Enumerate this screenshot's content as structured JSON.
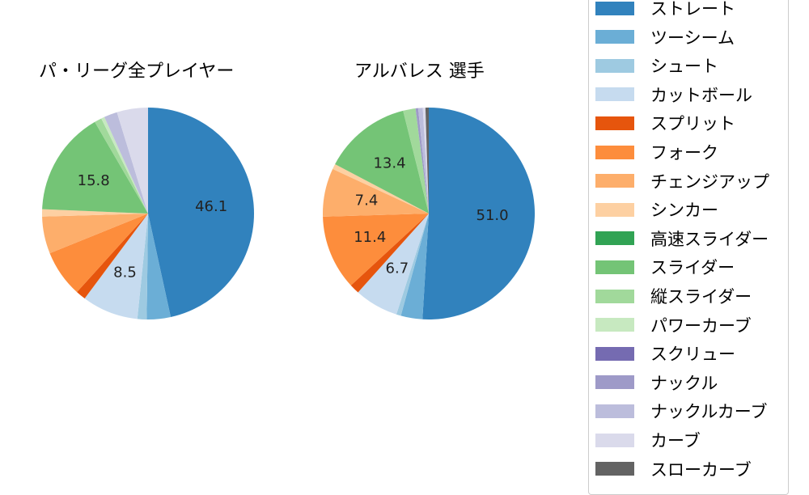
{
  "chart_data": [
    {
      "type": "pie",
      "title": "パ・リーグ全プレイヤー",
      "slices": [
        {
          "label": "ストレート",
          "value": 46.1,
          "color": "#3182bd"
        },
        {
          "label": "ツーシーム",
          "value": 3.6,
          "color": "#6baed6"
        },
        {
          "label": "シュート",
          "value": 1.4,
          "color": "#9ecae1"
        },
        {
          "label": "カットボール",
          "value": 8.5,
          "color": "#c6dbef"
        },
        {
          "label": "スプリット",
          "value": 1.5,
          "color": "#e6550d"
        },
        {
          "label": "フォーク",
          "value": 7.1,
          "color": "#fd8d3c"
        },
        {
          "label": "チェンジアップ",
          "value": 5.6,
          "color": "#fdae6b"
        },
        {
          "label": "シンカー",
          "value": 1.1,
          "color": "#fdd0a2"
        },
        {
          "label": "高速スライダー",
          "value": 0.0,
          "color": "#31a354"
        },
        {
          "label": "スライダー",
          "value": 15.8,
          "color": "#74c476"
        },
        {
          "label": "縦スライダー",
          "value": 1.1,
          "color": "#a1d99b"
        },
        {
          "label": "パワーカーブ",
          "value": 0.5,
          "color": "#c7e9c0"
        },
        {
          "label": "スクリュー",
          "value": 0.0,
          "color": "#756bb1"
        },
        {
          "label": "ナックル",
          "value": 0.0,
          "color": "#9e9ac8"
        },
        {
          "label": "ナックルカーブ",
          "value": 2.0,
          "color": "#bcbddc"
        },
        {
          "label": "カーブ",
          "value": 4.7,
          "color": "#dadaeb"
        },
        {
          "label": "スローカーブ",
          "value": 0.0,
          "color": "#636363"
        }
      ],
      "data_labels": {
        "ストレート": "46.1",
        "カットボール": "8.5",
        "スライダー": "15.8"
      }
    },
    {
      "type": "pie",
      "title": "アルバレス  選手",
      "slices": [
        {
          "label": "ストレート",
          "value": 51.0,
          "color": "#3182bd"
        },
        {
          "label": "ツーシーム",
          "value": 3.3,
          "color": "#6baed6"
        },
        {
          "label": "シュート",
          "value": 0.7,
          "color": "#9ecae1"
        },
        {
          "label": "カットボール",
          "value": 6.7,
          "color": "#c6dbef"
        },
        {
          "label": "スプリット",
          "value": 1.5,
          "color": "#e6550d"
        },
        {
          "label": "フォーク",
          "value": 11.4,
          "color": "#fd8d3c"
        },
        {
          "label": "チェンジアップ",
          "value": 7.4,
          "color": "#fdae6b"
        },
        {
          "label": "シンカー",
          "value": 0.8,
          "color": "#fdd0a2"
        },
        {
          "label": "高速スライダー",
          "value": 0.0,
          "color": "#31a354"
        },
        {
          "label": "スライダー",
          "value": 13.4,
          "color": "#74c476"
        },
        {
          "label": "縦スライダー",
          "value": 1.9,
          "color": "#a1d99b"
        },
        {
          "label": "パワーカーブ",
          "value": 0.0,
          "color": "#c7e9c0"
        },
        {
          "label": "スクリュー",
          "value": 0.0,
          "color": "#756bb1"
        },
        {
          "label": "ナックル",
          "value": 0.4,
          "color": "#9e9ac8"
        },
        {
          "label": "ナックルカーブ",
          "value": 0.7,
          "color": "#bcbddc"
        },
        {
          "label": "カーブ",
          "value": 0.4,
          "color": "#dadaeb"
        },
        {
          "label": "スローカーブ",
          "value": 0.5,
          "color": "#636363"
        }
      ],
      "data_labels": {
        "ストレート": "51.0",
        "カットボール": "6.7",
        "フォーク": "11.4",
        "チェンジアップ": "7.4",
        "スライダー": "13.4"
      }
    }
  ],
  "legend": [
    {
      "label": "ストレート",
      "color": "#3182bd"
    },
    {
      "label": "ツーシーム",
      "color": "#6baed6"
    },
    {
      "label": "シュート",
      "color": "#9ecae1"
    },
    {
      "label": "カットボール",
      "color": "#c6dbef"
    },
    {
      "label": "スプリット",
      "color": "#e6550d"
    },
    {
      "label": "フォーク",
      "color": "#fd8d3c"
    },
    {
      "label": "チェンジアップ",
      "color": "#fdae6b"
    },
    {
      "label": "シンカー",
      "color": "#fdd0a2"
    },
    {
      "label": "高速スライダー",
      "color": "#31a354"
    },
    {
      "label": "スライダー",
      "color": "#74c476"
    },
    {
      "label": "縦スライダー",
      "color": "#a1d99b"
    },
    {
      "label": "パワーカーブ",
      "color": "#c7e9c0"
    },
    {
      "label": "スクリュー",
      "color": "#756bb1"
    },
    {
      "label": "ナックル",
      "color": "#9e9ac8"
    },
    {
      "label": "ナックルカーブ",
      "color": "#bcbddc"
    },
    {
      "label": "カーブ",
      "color": "#dadaeb"
    },
    {
      "label": "スローカーブ",
      "color": "#636363"
    }
  ]
}
